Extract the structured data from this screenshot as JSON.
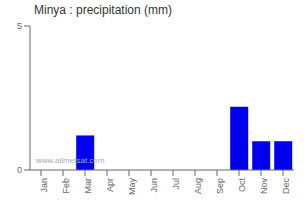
{
  "chart_data": {
    "type": "bar",
    "title": "Minya : precipitation (mm)",
    "categories": [
      "Jan",
      "Feb",
      "Mar",
      "Apr",
      "May",
      "Jun",
      "Jul",
      "Aug",
      "Sep",
      "Oct",
      "Nov",
      "Dec"
    ],
    "values": [
      0,
      0,
      1.2,
      0,
      0,
      0,
      0,
      0,
      0,
      2.2,
      1.0,
      1.0
    ],
    "color": "#0000EE",
    "ylim": [
      0,
      5
    ],
    "yticks": [
      0,
      5
    ],
    "grid": false,
    "annotation": "www.allmetsat.com"
  }
}
